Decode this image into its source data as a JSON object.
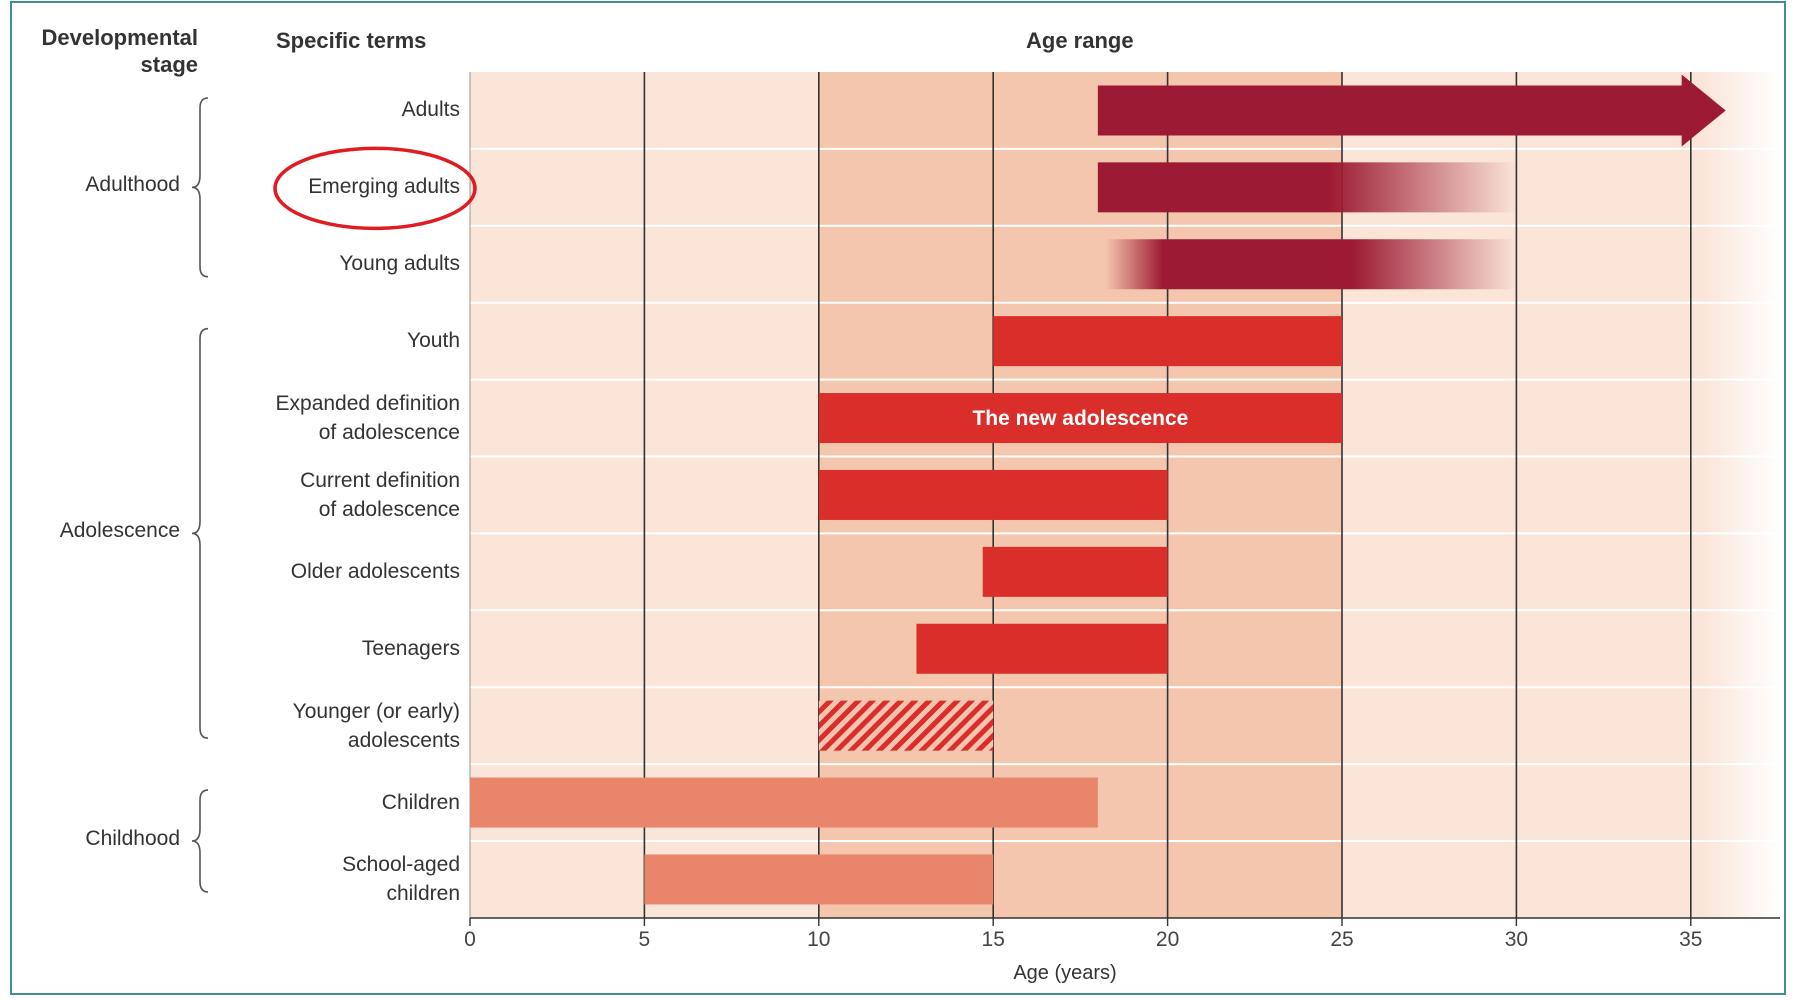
{
  "headers": {
    "stage": "Developmental stage",
    "terms": "Specific terms",
    "range": "Age range"
  },
  "stages": [
    {
      "label": "Adulthood",
      "first_row": 0,
      "last_row": 2
    },
    {
      "label": "Adolescence",
      "first_row": 3,
      "last_row": 8
    },
    {
      "label": "Childhood",
      "first_row": 9,
      "last_row": 10
    }
  ],
  "circled_term": "Emerging adults",
  "colors": {
    "dark_red": "#9c1a33",
    "red": "#d92e2a",
    "salmon": "#e8856a",
    "band_light": "#fbe4d8",
    "band_mid": "#f4c6ad",
    "circle": "#e01b22",
    "frame": "#3f8f8a"
  },
  "chart_data": {
    "type": "bar",
    "orientation": "horizontal",
    "title": "Age range",
    "xlabel": "Age (years)",
    "xlim": [
      0,
      37
    ],
    "xticks": [
      0,
      5,
      10,
      15,
      20,
      25,
      30,
      35
    ],
    "shaded_band": [
      10,
      25
    ],
    "categories": [
      "Adults",
      "Emerging adults",
      "Young adults",
      "Youth",
      "Expanded definition of adolescence",
      "Current definition of adolescence",
      "Older adolescents",
      "Teenagers",
      "Younger (or early) adolescents",
      "Children",
      "School-aged children"
    ],
    "bars": [
      {
        "term": "Adults",
        "start": 18,
        "end": 36,
        "color": "dark_red",
        "style": "arrow"
      },
      {
        "term": "Emerging adults",
        "start": 18,
        "end": 30,
        "color": "dark_red",
        "style": "fade-right"
      },
      {
        "term": "Young adults",
        "start": 18,
        "end": 30,
        "color": "dark_red",
        "style": "fade-both"
      },
      {
        "term": "Youth",
        "start": 15,
        "end": 25,
        "color": "red",
        "style": "solid"
      },
      {
        "term": "Expanded definition of adolescence",
        "start": 10,
        "end": 25,
        "color": "red",
        "style": "solid",
        "label": "The new adolescence"
      },
      {
        "term": "Current definition of adolescence",
        "start": 10,
        "end": 20,
        "color": "red",
        "style": "solid"
      },
      {
        "term": "Older adolescents",
        "start": 14.7,
        "end": 20,
        "color": "red",
        "style": "solid"
      },
      {
        "term": "Teenagers",
        "start": 12.8,
        "end": 20,
        "color": "red",
        "style": "solid"
      },
      {
        "term": "Younger (or early) adolescents",
        "start": 10,
        "end": 15,
        "color": "red",
        "style": "hatched"
      },
      {
        "term": "Children",
        "start": 0,
        "end": 18,
        "color": "salmon",
        "style": "solid"
      },
      {
        "term": "School-aged children",
        "start": 5,
        "end": 15,
        "color": "salmon",
        "style": "solid"
      }
    ]
  }
}
